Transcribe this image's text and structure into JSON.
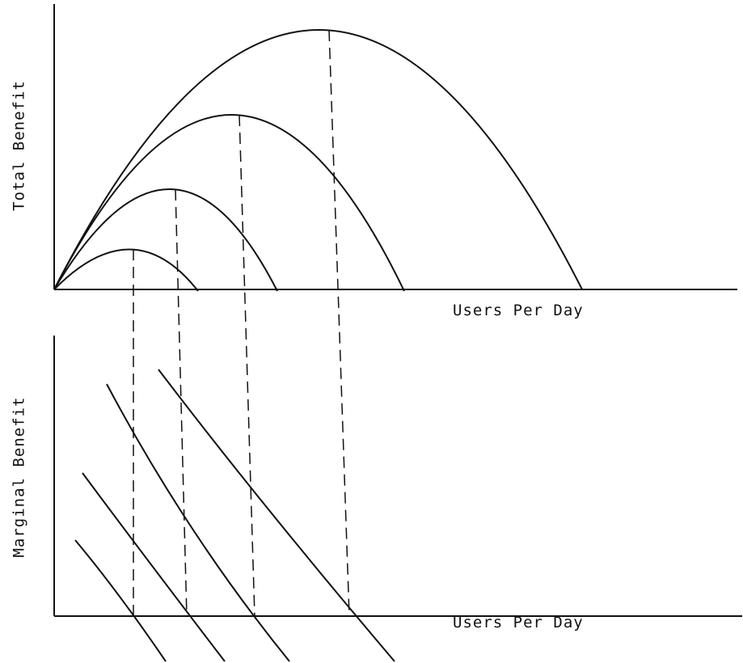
{
  "top_panel": {
    "y_label": "Total Benefit",
    "x_label": "Users Per Day"
  },
  "bottom_panel": {
    "y_label": "Marginal Benefit",
    "x_label": "Users Per Day"
  }
}
